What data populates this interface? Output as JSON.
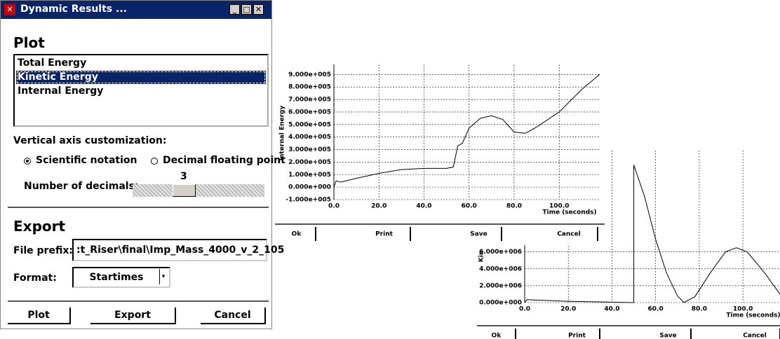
{
  "dialog": {
    "title": "Dynamic Results ...",
    "plot_heading": "Plot",
    "plot_list": [
      "Total Energy",
      "Kinetic Energy",
      "Internal Energy"
    ],
    "selected_index": 1,
    "axis_heading": "Vertical axis customization:",
    "notation_options": [
      "Scientific notation",
      "Decimal floating point"
    ],
    "selected_option": 0,
    "decimals_label": "Number of decimals:",
    "decimals_value": 3,
    "export_heading": "Export",
    "file_prefix_label": "File prefix:",
    "file_prefix_value": ":t_Riser\\final\\Imp_Mass_4000_v_2_105",
    "format_label": "Format:",
    "format_value": "Startimes",
    "buttons": [
      "Plot",
      "Export",
      "Cancel"
    ]
  },
  "plot_windows": [
    {
      "buttons": [
        "Ok",
        "Print",
        "Save",
        "Cancel"
      ]
    },
    {
      "buttons": [
        "Ok",
        "Print",
        "Save",
        "Cancel"
      ]
    }
  ],
  "chart_data": [
    {
      "type": "line",
      "y_label": "Internal Energy",
      "x_label": "Time (seconds)",
      "color": "#000000",
      "grid": true,
      "x": [
        0,
        1,
        3,
        10,
        20,
        30,
        40,
        50,
        53,
        55,
        57,
        60,
        65,
        70,
        75,
        80,
        85,
        90,
        100,
        110,
        118
      ],
      "values": [
        0,
        50000,
        40000,
        70000,
        110000,
        140000,
        150000,
        150000,
        160000,
        330000,
        350000,
        470000,
        550000,
        570000,
        540000,
        440000,
        430000,
        480000,
        600000,
        780000,
        900000
      ],
      "xlim": [
        0,
        118
      ],
      "ylim": [
        -100000,
        980000
      ],
      "xticks": [
        {
          "value": 0,
          "label": "0.0"
        },
        {
          "value": 20,
          "label": "20.0"
        },
        {
          "value": 40,
          "label": "40.0"
        },
        {
          "value": 60,
          "label": "60.0"
        },
        {
          "value": 80,
          "label": "80.0"
        },
        {
          "value": 100,
          "label": "100.0"
        }
      ],
      "yticks": [
        {
          "value": -100000,
          "label": "-1.000e+005"
        },
        {
          "value": 0,
          "label": "0.000e+000"
        },
        {
          "value": 100000,
          "label": "1.000e+005"
        },
        {
          "value": 200000,
          "label": "2.000e+005"
        },
        {
          "value": 300000,
          "label": "3.000e+005"
        },
        {
          "value": 400000,
          "label": "4.000e+005"
        },
        {
          "value": 500000,
          "label": "5.000e+005"
        },
        {
          "value": 600000,
          "label": "6.000e+005"
        },
        {
          "value": 700000,
          "label": "7.000e+005"
        },
        {
          "value": 800000,
          "label": "8.000e+005"
        },
        {
          "value": 900000,
          "label": "9.000e+005"
        }
      ]
    },
    {
      "type": "line",
      "y_label": "Kin",
      "x_label": "Time (seconds)",
      "color": "#000000",
      "grid": true,
      "x": [
        0,
        1,
        5,
        20,
        40,
        50,
        50,
        55,
        60,
        65,
        70,
        73,
        78,
        85,
        92,
        97,
        102,
        110,
        117
      ],
      "values": [
        0,
        350000,
        300000,
        150000,
        50000,
        0,
        16300000,
        12500000,
        7500000,
        3500000,
        800000,
        0,
        700000,
        3500000,
        6000000,
        6500000,
        6000000,
        3500000,
        1000000
      ],
      "xlim": [
        0,
        117
      ],
      "ylim": [
        0,
        18000000
      ],
      "xticks": [
        {
          "value": 0,
          "label": "0.0"
        },
        {
          "value": 20,
          "label": "20.0"
        },
        {
          "value": 40,
          "label": "40.0"
        },
        {
          "value": 60,
          "label": "60.0"
        },
        {
          "value": 80,
          "label": "80.0"
        },
        {
          "value": 100,
          "label": "100.0"
        }
      ],
      "yticks": [
        {
          "value": 0,
          "label": "0.000e+000"
        },
        {
          "value": 2000000,
          "label": "2.000e+006"
        },
        {
          "value": 4000000,
          "label": "4.000e+006"
        },
        {
          "value": 6000000,
          "label": "6.000e+006"
        }
      ]
    }
  ]
}
